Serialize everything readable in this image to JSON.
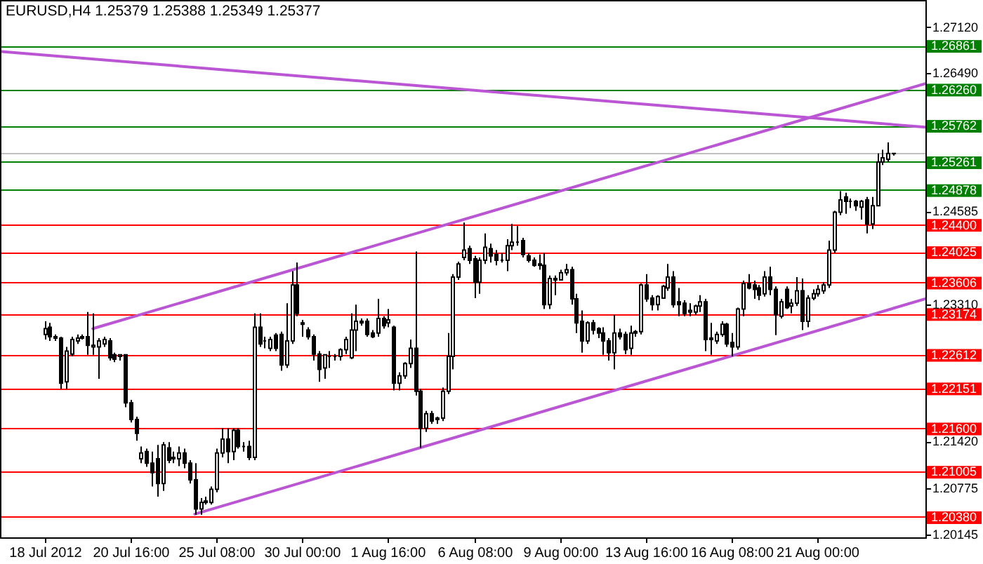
{
  "chart_data": {
    "type": "candlestick",
    "title": "EURUSD,H4 1.25379 1.25388 1.25349 1.25377",
    "color": "#000000",
    "categories": [
      null,
      null,
      null,
      null,
      null,
      null,
      null,
      null,
      "18 Jul 2012",
      null,
      null,
      null,
      null,
      null,
      null,
      null,
      null,
      null,
      null,
      null,
      null,
      null,
      null,
      null,
      "20 Jul 16:00",
      null,
      null,
      null,
      null,
      null,
      null,
      null,
      null,
      null,
      null,
      null,
      null,
      null,
      null,
      null,
      "25 Jul 08:00",
      null,
      null,
      null,
      null,
      null,
      null,
      null,
      null,
      null,
      null,
      null,
      null,
      null,
      null,
      null,
      "30 Jul 00:00",
      null,
      null,
      null,
      null,
      null,
      null,
      null,
      null,
      null,
      null,
      null,
      null,
      null,
      null,
      null,
      "1 Aug 16:00",
      null,
      null,
      null,
      null,
      null,
      null,
      null,
      null,
      null,
      null,
      null,
      null,
      null,
      null,
      null,
      "6 Aug 08:00",
      null,
      null,
      null,
      null,
      null,
      null,
      null,
      null,
      null,
      null,
      null,
      null,
      null,
      null,
      null,
      "9 Aug 00:00",
      null,
      null,
      null,
      null,
      null,
      null,
      null,
      null,
      null,
      null,
      null,
      null,
      null,
      null,
      null,
      "13 Aug 16:00",
      null,
      null,
      null,
      null,
      null,
      null,
      null,
      null,
      null,
      null,
      null,
      null,
      null,
      null,
      null,
      "16 Aug 08:00",
      null,
      null,
      null,
      null,
      null,
      null,
      null,
      null,
      null,
      null,
      null,
      null,
      null,
      null,
      null,
      "21 Aug 00:00",
      null,
      null,
      null,
      null,
      null,
      null,
      null,
      null,
      null,
      null,
      null,
      null,
      null,
      null,
      null,
      null,
      null,
      null,
      null,
      null
    ],
    "ohlc": [
      null,
      null,
      null,
      null,
      null,
      null,
      null,
      null,
      [
        1.2289,
        1.2307,
        1.2282,
        1.2297
      ],
      [
        1.2299,
        1.2305,
        1.228,
        1.2286
      ],
      [
        1.2286,
        1.2289,
        1.228,
        1.2284
      ],
      [
        1.2284,
        1.2286,
        1.2214,
        1.2222
      ],
      [
        1.2224,
        1.2272,
        1.2214,
        1.2266
      ],
      [
        1.2262,
        1.2286,
        1.2259,
        1.2282
      ],
      [
        1.228,
        1.2289,
        1.2276,
        1.2284
      ],
      [
        1.2284,
        1.2289,
        1.2282,
        1.2286
      ],
      [
        1.2286,
        1.232,
        1.2261,
        1.2274
      ],
      [
        1.2272,
        1.2318,
        1.2261,
        1.2274
      ],
      [
        1.2272,
        1.2284,
        1.2228,
        1.228
      ],
      [
        1.2276,
        1.2286,
        1.2272,
        1.2282
      ],
      [
        1.228,
        1.2284,
        1.2253,
        1.2257
      ],
      [
        1.2261,
        1.2264,
        1.2251,
        1.2255
      ],
      [
        1.2259,
        1.2262,
        1.2253,
        1.2261
      ],
      [
        1.2261,
        1.2262,
        1.2189,
        1.2195
      ],
      [
        1.2195,
        1.2199,
        1.2168,
        1.2172
      ],
      [
        1.2172,
        1.2176,
        1.2143,
        1.2153
      ],
      [
        1.2118,
        1.2135,
        1.2112,
        1.2126
      ],
      [
        1.2128,
        1.2132,
        1.2107,
        1.2112
      ],
      [
        1.2112,
        1.2128,
        1.208,
        1.2099
      ],
      [
        1.2118,
        1.2137,
        1.2066,
        1.2084
      ],
      [
        1.2084,
        1.2141,
        1.2074,
        1.2137
      ],
      [
        1.2133,
        1.2141,
        1.2112,
        1.2116
      ],
      [
        1.212,
        1.2128,
        1.2112,
        1.2118
      ],
      [
        1.2118,
        1.2135,
        1.2108,
        1.2126
      ],
      [
        1.2126,
        1.2132,
        1.2105,
        1.2112
      ],
      [
        1.2112,
        1.2116,
        1.2084,
        1.2089
      ],
      [
        1.2089,
        1.2112,
        1.2041,
        1.2049
      ],
      [
        1.2049,
        1.2064,
        1.2041,
        1.2058
      ],
      [
        1.2058,
        1.2066,
        1.2055,
        1.206
      ],
      [
        1.2058,
        1.208,
        1.2055,
        1.2076
      ],
      [
        1.2076,
        1.2132,
        1.2072,
        1.2126
      ],
      [
        1.2126,
        1.216,
        1.212,
        1.2145
      ],
      [
        1.2145,
        1.216,
        1.2112,
        1.2128
      ],
      [
        1.2128,
        1.216,
        1.2116,
        1.2157
      ],
      [
        1.2157,
        1.216,
        1.2132,
        1.2135
      ],
      [
        1.2135,
        1.2141,
        1.2128,
        1.2135
      ],
      [
        1.2135,
        1.2143,
        1.2116,
        1.212
      ],
      [
        1.212,
        1.2318,
        1.2116,
        1.2299
      ],
      [
        1.2299,
        1.2318,
        1.2272,
        1.2276
      ],
      [
        1.228,
        1.2286,
        1.227,
        1.228
      ],
      [
        1.227,
        1.2286,
        1.2266,
        1.2282
      ],
      [
        1.2288,
        1.2291,
        1.2266,
        1.227
      ],
      [
        1.2289,
        1.2293,
        1.2239,
        1.2247
      ],
      [
        1.2247,
        1.2332,
        1.2243,
        1.228
      ],
      [
        1.228,
        1.2376,
        1.2276,
        1.2357
      ],
      [
        1.2357,
        1.2388,
        1.2314,
        1.2318
      ],
      [
        1.2305,
        1.2309,
        1.2286,
        1.2303
      ],
      [
        1.2295,
        1.2299,
        1.2282,
        1.2286
      ],
      [
        1.2286,
        1.2289,
        1.2253,
        1.2262
      ],
      [
        1.2262,
        1.2266,
        1.2224,
        1.2241
      ],
      [
        1.2243,
        1.2262,
        1.2228,
        1.2261
      ],
      [
        1.2259,
        1.2266,
        1.2243,
        1.2259
      ],
      [
        1.2259,
        1.2262,
        1.2253,
        1.2259
      ],
      [
        1.2259,
        1.227,
        1.2253,
        1.2268
      ],
      [
        1.2268,
        1.2286,
        1.2262,
        1.2282
      ],
      [
        1.2257,
        1.2318,
        1.2255,
        1.2295
      ],
      [
        1.2295,
        1.233,
        1.2266,
        1.2307
      ],
      [
        1.2307,
        1.2311,
        1.2301,
        1.2305
      ],
      [
        1.2307,
        1.2311,
        1.2286,
        1.2289
      ],
      [
        1.2291,
        1.2295,
        1.2284,
        1.2286
      ],
      [
        1.2291,
        1.2338,
        1.2286,
        1.2311
      ],
      [
        1.2311,
        1.2314,
        1.2297,
        1.2301
      ],
      [
        1.2305,
        1.2324,
        1.2299,
        1.2309
      ],
      [
        1.2299,
        1.2301,
        1.2212,
        1.2222
      ],
      [
        1.2222,
        1.2237,
        1.2212,
        1.2232
      ],
      [
        1.2232,
        1.2251,
        1.2228,
        1.2249
      ],
      [
        1.2249,
        1.2282,
        1.2243,
        1.227
      ],
      [
        1.227,
        1.2403,
        1.2205,
        1.2211
      ],
      [
        1.2211,
        1.2214,
        1.2133,
        1.216
      ],
      [
        1.216,
        1.2184,
        1.2155,
        1.218
      ],
      [
        1.218,
        1.2184,
        1.2166,
        1.217
      ],
      [
        1.2172,
        1.2176,
        1.2166,
        1.2174
      ],
      [
        1.2174,
        1.2216,
        1.217,
        1.2211
      ],
      [
        1.2211,
        1.2291,
        1.2207,
        1.2259
      ],
      [
        1.2259,
        1.2372,
        1.2241,
        1.2368
      ],
      [
        1.2368,
        1.2389,
        1.2364,
        1.2386
      ],
      [
        1.2395,
        1.2443,
        1.2391,
        1.2405
      ],
      [
        1.2407,
        1.2411,
        1.2386,
        1.2391
      ],
      [
        1.2393,
        1.2397,
        1.2339,
        1.2361
      ],
      [
        1.2361,
        1.2395,
        1.2345,
        1.2391
      ],
      [
        1.2391,
        1.2428,
        1.2386,
        1.2409
      ],
      [
        1.2407,
        1.2414,
        1.2388,
        1.2397
      ],
      [
        1.2399,
        1.2405,
        1.2384,
        1.2391
      ],
      [
        1.2391,
        1.2401,
        1.2388,
        1.2391
      ],
      [
        1.2391,
        1.242,
        1.2376,
        1.2411
      ],
      [
        1.2411,
        1.2441,
        1.2405,
        1.2416
      ],
      [
        1.2416,
        1.2438,
        1.2411,
        1.2416
      ],
      [
        1.2418,
        1.2422,
        1.2395,
        1.2399
      ],
      [
        1.2397,
        1.2401,
        1.2388,
        1.2391
      ],
      [
        1.2391,
        1.2395,
        1.2382,
        1.2384
      ],
      [
        1.2384,
        1.2399,
        1.2378,
        1.2386
      ],
      [
        1.2384,
        1.2401,
        1.2324,
        1.233
      ],
      [
        1.233,
        1.237,
        1.2324,
        1.2366
      ],
      [
        1.2366,
        1.237,
        1.2343,
        1.2364
      ],
      [
        1.2364,
        1.2378,
        1.2363,
        1.2374
      ],
      [
        1.2374,
        1.2386,
        1.237,
        1.2378
      ],
      [
        1.2378,
        1.2382,
        1.233,
        1.2338
      ],
      [
        1.2338,
        1.2345,
        1.2291,
        1.2305
      ],
      [
        1.2307,
        1.2322,
        1.2264,
        1.228
      ],
      [
        1.228,
        1.2307,
        1.2276,
        1.2305
      ],
      [
        1.2305,
        1.2309,
        1.2289,
        1.2295
      ],
      [
        1.2297,
        1.2299,
        1.2284,
        1.2291
      ],
      [
        1.2291,
        1.2299,
        1.2261,
        1.228
      ],
      [
        1.228,
        1.2284,
        1.2253,
        1.2264
      ],
      [
        1.2264,
        1.2316,
        1.2241,
        1.2291
      ],
      [
        1.2291,
        1.2297,
        1.2282,
        1.2286
      ],
      [
        1.2289,
        1.2293,
        1.2262,
        1.2268
      ],
      [
        1.227,
        1.2301,
        1.2261,
        1.2291
      ],
      [
        1.2291,
        1.2295,
        1.2286,
        1.2293
      ],
      [
        1.2293,
        1.2359,
        1.2289,
        1.2357
      ],
      [
        1.2357,
        1.2372,
        1.2334,
        1.2338
      ],
      [
        1.2339,
        1.2343,
        1.2322,
        1.233
      ],
      [
        1.233,
        1.2343,
        1.2322,
        1.2341
      ],
      [
        1.2339,
        1.2357,
        1.2338,
        1.2355
      ],
      [
        1.2353,
        1.2386,
        1.2349,
        1.2368
      ],
      [
        1.2368,
        1.2376,
        1.2326,
        1.233
      ],
      [
        1.2334,
        1.2353,
        1.2314,
        1.233
      ],
      [
        1.2332,
        1.2336,
        1.2314,
        1.2318
      ],
      [
        1.232,
        1.2332,
        1.2314,
        1.2322
      ],
      [
        1.232,
        1.233,
        1.2316,
        1.2328
      ],
      [
        1.2328,
        1.2343,
        1.232,
        1.2334
      ],
      [
        1.2334,
        1.2338,
        1.2266,
        1.2282
      ],
      [
        1.2282,
        1.2305,
        1.2261,
        1.2284
      ],
      [
        1.228,
        1.2293,
        1.2276,
        1.2289
      ],
      [
        1.2289,
        1.2307,
        1.2286,
        1.2303
      ],
      [
        1.2303,
        1.2305,
        1.2272,
        1.2276
      ],
      [
        1.2278,
        1.2291,
        1.2259,
        1.2272
      ],
      [
        1.2272,
        1.2326,
        1.2268,
        1.2324
      ],
      [
        1.2324,
        1.2363,
        1.2314,
        1.2359
      ],
      [
        1.2359,
        1.2372,
        1.2351,
        1.2353
      ],
      [
        1.2357,
        1.2363,
        1.2338,
        1.2351
      ],
      [
        1.2353,
        1.2357,
        1.2336,
        1.2343
      ],
      [
        1.2345,
        1.2376,
        1.2341,
        1.2368
      ],
      [
        1.2368,
        1.2382,
        1.2343,
        1.2351
      ],
      [
        1.2351,
        1.2355,
        1.2288,
        1.2316
      ],
      [
        1.2314,
        1.2338,
        1.2311,
        1.2334
      ],
      [
        1.2351,
        1.2355,
        1.2324,
        1.2326
      ],
      [
        1.2328,
        1.2338,
        1.2318,
        1.2332
      ],
      [
        1.2332,
        1.2368,
        1.2328,
        1.2349
      ],
      [
        1.2349,
        1.2366,
        1.2295,
        1.2307
      ],
      [
        1.2307,
        1.2343,
        1.2299,
        1.2339
      ],
      [
        1.2339,
        1.2351,
        1.2336,
        1.2345
      ],
      [
        1.2345,
        1.2357,
        1.2341,
        1.2351
      ],
      [
        1.2349,
        1.2361,
        1.2345,
        1.2357
      ],
      [
        1.2357,
        1.2418,
        1.2353,
        1.2405
      ],
      [
        1.2405,
        1.2459,
        1.2401,
        1.2457
      ],
      [
        1.2457,
        1.2486,
        1.2453,
        1.2474
      ],
      [
        1.2478,
        1.2484,
        1.2455,
        1.2472
      ],
      [
        1.2472,
        1.2476,
        1.2463,
        1.2472
      ],
      [
        1.2472,
        1.2474,
        1.2459,
        1.2466
      ],
      [
        1.2464,
        1.2474,
        1.2447,
        1.2472
      ],
      [
        1.2474,
        1.2478,
        1.2428,
        1.2441
      ],
      [
        1.2441,
        1.2478,
        1.2434,
        1.2466
      ],
      [
        1.2466,
        1.2538,
        1.2466,
        1.2526
      ],
      [
        1.2526,
        1.2543,
        1.2522,
        1.2532
      ],
      [
        1.253,
        1.2553,
        1.2526,
        1.2538
      ],
      [
        1.25379,
        1.25388,
        1.25349,
        1.25377
      ],
      null,
      null,
      null,
      null,
      null,
      null
    ],
    "series": [
      {
        "type": "line",
        "color": "#ba55d3",
        "values": [
          1.2678,
          null,
          null,
          null,
          null,
          null,
          null,
          null,
          null,
          null,
          null,
          null,
          null,
          null,
          null,
          null,
          null,
          null,
          null,
          null,
          null,
          null,
          null,
          null,
          null,
          null,
          null,
          null,
          null,
          null,
          null,
          null,
          null,
          null,
          null,
          null,
          null,
          null,
          null,
          null,
          null,
          null,
          null,
          null,
          null,
          null,
          null,
          null,
          null,
          null,
          null,
          null,
          null,
          null,
          null,
          null,
          null,
          null,
          null,
          null,
          null,
          null,
          null,
          null,
          null,
          null,
          null,
          null,
          null,
          null,
          null,
          null,
          null,
          null,
          null,
          null,
          null,
          null,
          null,
          null,
          null,
          null,
          null,
          null,
          null,
          null,
          null,
          null,
          null,
          null,
          null,
          null,
          null,
          null,
          null,
          null,
          null,
          null,
          null,
          null,
          null,
          null,
          null,
          null,
          null,
          null,
          null,
          null,
          null,
          null,
          null,
          null,
          null,
          null,
          null,
          null,
          null,
          null,
          null,
          null,
          null,
          null,
          null,
          null,
          null,
          null,
          null,
          null,
          null,
          null,
          null,
          null,
          null,
          null,
          null,
          null,
          null,
          null,
          null,
          null,
          null,
          null,
          null,
          null,
          null,
          null,
          null,
          null,
          null,
          null,
          null,
          null,
          null,
          null,
          null,
          null,
          null,
          null,
          null,
          null,
          null,
          null,
          null,
          null,
          null,
          null,
          null,
          null,
          null,
          null,
          null,
          null,
          1.2574
        ]
      },
      {
        "type": "line",
        "color": "#ba55d3",
        "values": [
          null,
          null,
          null,
          null,
          null,
          null,
          null,
          null,
          null,
          null,
          null,
          null,
          null,
          null,
          null,
          null,
          null,
          1.2297,
          null,
          null,
          null,
          null,
          null,
          null,
          null,
          null,
          null,
          null,
          null,
          null,
          null,
          null,
          null,
          null,
          null,
          null,
          null,
          null,
          null,
          null,
          null,
          null,
          null,
          null,
          null,
          null,
          null,
          null,
          null,
          null,
          null,
          null,
          null,
          null,
          null,
          null,
          null,
          null,
          null,
          null,
          null,
          null,
          null,
          null,
          null,
          null,
          null,
          null,
          null,
          null,
          null,
          null,
          null,
          null,
          null,
          null,
          null,
          null,
          null,
          null,
          null,
          null,
          null,
          null,
          null,
          null,
          null,
          null,
          null,
          null,
          null,
          null,
          null,
          null,
          null,
          null,
          null,
          null,
          null,
          null,
          null,
          null,
          null,
          null,
          null,
          null,
          null,
          null,
          null,
          null,
          null,
          null,
          null,
          null,
          null,
          null,
          null,
          null,
          null,
          null,
          null,
          null,
          null,
          null,
          null,
          null,
          null,
          null,
          null,
          null,
          null,
          null,
          null,
          null,
          null,
          null,
          null,
          null,
          null,
          null,
          null,
          null,
          null,
          null,
          null,
          null,
          null,
          null,
          null,
          null,
          null,
          null,
          null,
          null,
          null,
          null,
          null,
          null,
          null,
          null,
          null,
          null,
          null,
          null,
          null,
          null,
          null,
          null,
          null,
          null,
          null,
          null,
          1.2634
        ]
      },
      {
        "type": "line",
        "color": "#ba55d3",
        "values": [
          null,
          null,
          null,
          null,
          null,
          null,
          null,
          null,
          null,
          null,
          null,
          null,
          null,
          null,
          null,
          null,
          null,
          null,
          null,
          null,
          null,
          null,
          null,
          null,
          null,
          null,
          null,
          null,
          null,
          null,
          null,
          null,
          null,
          null,
          null,
          null,
          1.2042,
          null,
          null,
          null,
          null,
          null,
          null,
          null,
          null,
          null,
          null,
          null,
          null,
          null,
          null,
          null,
          null,
          null,
          null,
          null,
          null,
          null,
          null,
          null,
          null,
          null,
          null,
          null,
          null,
          null,
          null,
          null,
          null,
          null,
          null,
          null,
          null,
          null,
          null,
          null,
          null,
          null,
          null,
          null,
          null,
          null,
          null,
          null,
          null,
          null,
          null,
          null,
          null,
          null,
          null,
          null,
          null,
          null,
          null,
          null,
          null,
          null,
          null,
          null,
          null,
          null,
          null,
          null,
          null,
          null,
          null,
          null,
          null,
          null,
          null,
          null,
          null,
          null,
          null,
          null,
          null,
          null,
          null,
          null,
          null,
          null,
          null,
          null,
          null,
          null,
          null,
          null,
          null,
          null,
          null,
          null,
          null,
          null,
          null,
          null,
          null,
          null,
          null,
          null,
          null,
          null,
          null,
          null,
          null,
          null,
          null,
          null,
          null,
          null,
          null,
          null,
          null,
          null,
          null,
          null,
          null,
          null,
          null,
          null,
          null,
          null,
          null,
          null,
          null,
          null,
          null,
          null,
          null,
          null,
          null,
          null,
          1.2338
        ]
      }
    ],
    "ylim": [
      1.201,
      1.2747
    ],
    "yticks": [
      {
        "value": 1.2712,
        "label": "1.27120"
      },
      {
        "value": 1.2649,
        "label": "1.26490"
      },
      {
        "value": 1.24585,
        "label": "1.24585"
      },
      {
        "value": 1.2331,
        "label": "1.23310"
      },
      {
        "value": 1.2142,
        "label": "1.21420"
      },
      {
        "value": 1.20775,
        "label": "1.20775"
      },
      {
        "value": 1.20145,
        "label": "1.20145"
      }
    ],
    "ref_lines": [
      {
        "axis": "y",
        "value": 1.26861,
        "label": "1.26861",
        "color": "#008000"
      },
      {
        "axis": "y",
        "value": 1.2626,
        "label": "1.26260",
        "color": "#008000"
      },
      {
        "axis": "y",
        "value": 1.25762,
        "label": "1.25762",
        "color": "#008000"
      },
      {
        "axis": "y",
        "value": 1.25377,
        "color": "#c0c0c0"
      },
      {
        "axis": "y",
        "value": 1.25261,
        "label": "1.25261",
        "color": "#008000"
      },
      {
        "axis": "y",
        "value": 1.24878,
        "label": "1.24878",
        "color": "#008000"
      },
      {
        "axis": "y",
        "value": 1.244,
        "label": "1.24400",
        "color": "#ff0000"
      },
      {
        "axis": "y",
        "value": 1.24025,
        "label": "1.24025",
        "color": "#ff0000"
      },
      {
        "axis": "y",
        "value": 1.23606,
        "label": "1.23606",
        "color": "#ff0000"
      },
      {
        "axis": "y",
        "value": 1.23174,
        "label": "1.23174",
        "color": "#ff0000"
      },
      {
        "axis": "y",
        "value": 1.22612,
        "label": "1.22612",
        "color": "#ff0000"
      },
      {
        "axis": "y",
        "value": 1.22151,
        "label": "1.22151",
        "color": "#ff0000"
      },
      {
        "axis": "y",
        "value": 1.216,
        "label": "1.21600",
        "color": "#ff0000"
      },
      {
        "axis": "y",
        "value": 1.21005,
        "label": "1.21005",
        "color": "#ff0000"
      },
      {
        "axis": "y",
        "value": 1.2038,
        "label": "1.20380",
        "color": "#ff0000"
      }
    ]
  }
}
